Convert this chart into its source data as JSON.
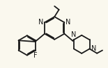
{
  "bg_color": "#faf8ee",
  "line_color": "#1a1a1a",
  "line_width": 1.3,
  "font_size": 7.0,
  "font_color": "#1a1a1a",
  "figsize": [
    1.55,
    0.98
  ],
  "dpi": 100,
  "xlim": [
    0,
    10.5
  ],
  "ylim": [
    0,
    6.8
  ]
}
